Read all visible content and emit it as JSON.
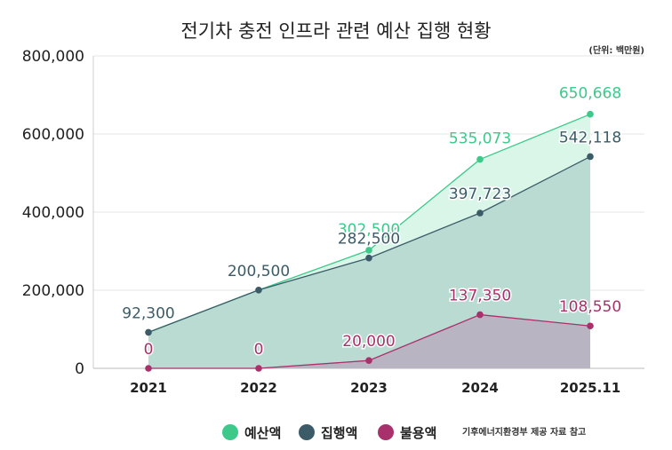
{
  "title": "전기차 충전 인프라 관련 예산 집행 현황",
  "unit_note": "(단위: 백만원)",
  "source_note": "기후에너지환경부 제공 자료 참고",
  "chart_data": {
    "type": "area",
    "categories": [
      "2021",
      "2022",
      "2023",
      "2024",
      "2025.11"
    ],
    "ylim": [
      0,
      800000
    ],
    "yticks": [
      0,
      200000,
      400000,
      600000,
      800000
    ],
    "ytick_labels": [
      "0",
      "200,000",
      "400,000",
      "600,000",
      "800,000"
    ],
    "grid": true,
    "legend_position": "bottom",
    "series": [
      {
        "name": "예산액",
        "color": "#3cc98a",
        "fill": "#d9f6e8",
        "values": [
          null,
          null,
          302500,
          535073,
          650668
        ],
        "labels": [
          "",
          "",
          "302,500",
          "535,073",
          "650,668"
        ]
      },
      {
        "name": "집행액",
        "color": "#3b5b68",
        "fill": "#b9dbd2",
        "values": [
          92300,
          200500,
          282500,
          397723,
          542118
        ],
        "labels": [
          "92,300",
          "200,500",
          "282,500",
          "397,723",
          "542,118"
        ]
      },
      {
        "name": "불용액",
        "color": "#a8306b",
        "fill": "#b9b4c2",
        "values": [
          0,
          0,
          20000,
          137350,
          108550
        ],
        "labels": [
          "0",
          "0",
          "20,000",
          "137,350",
          "108,550"
        ]
      }
    ]
  }
}
